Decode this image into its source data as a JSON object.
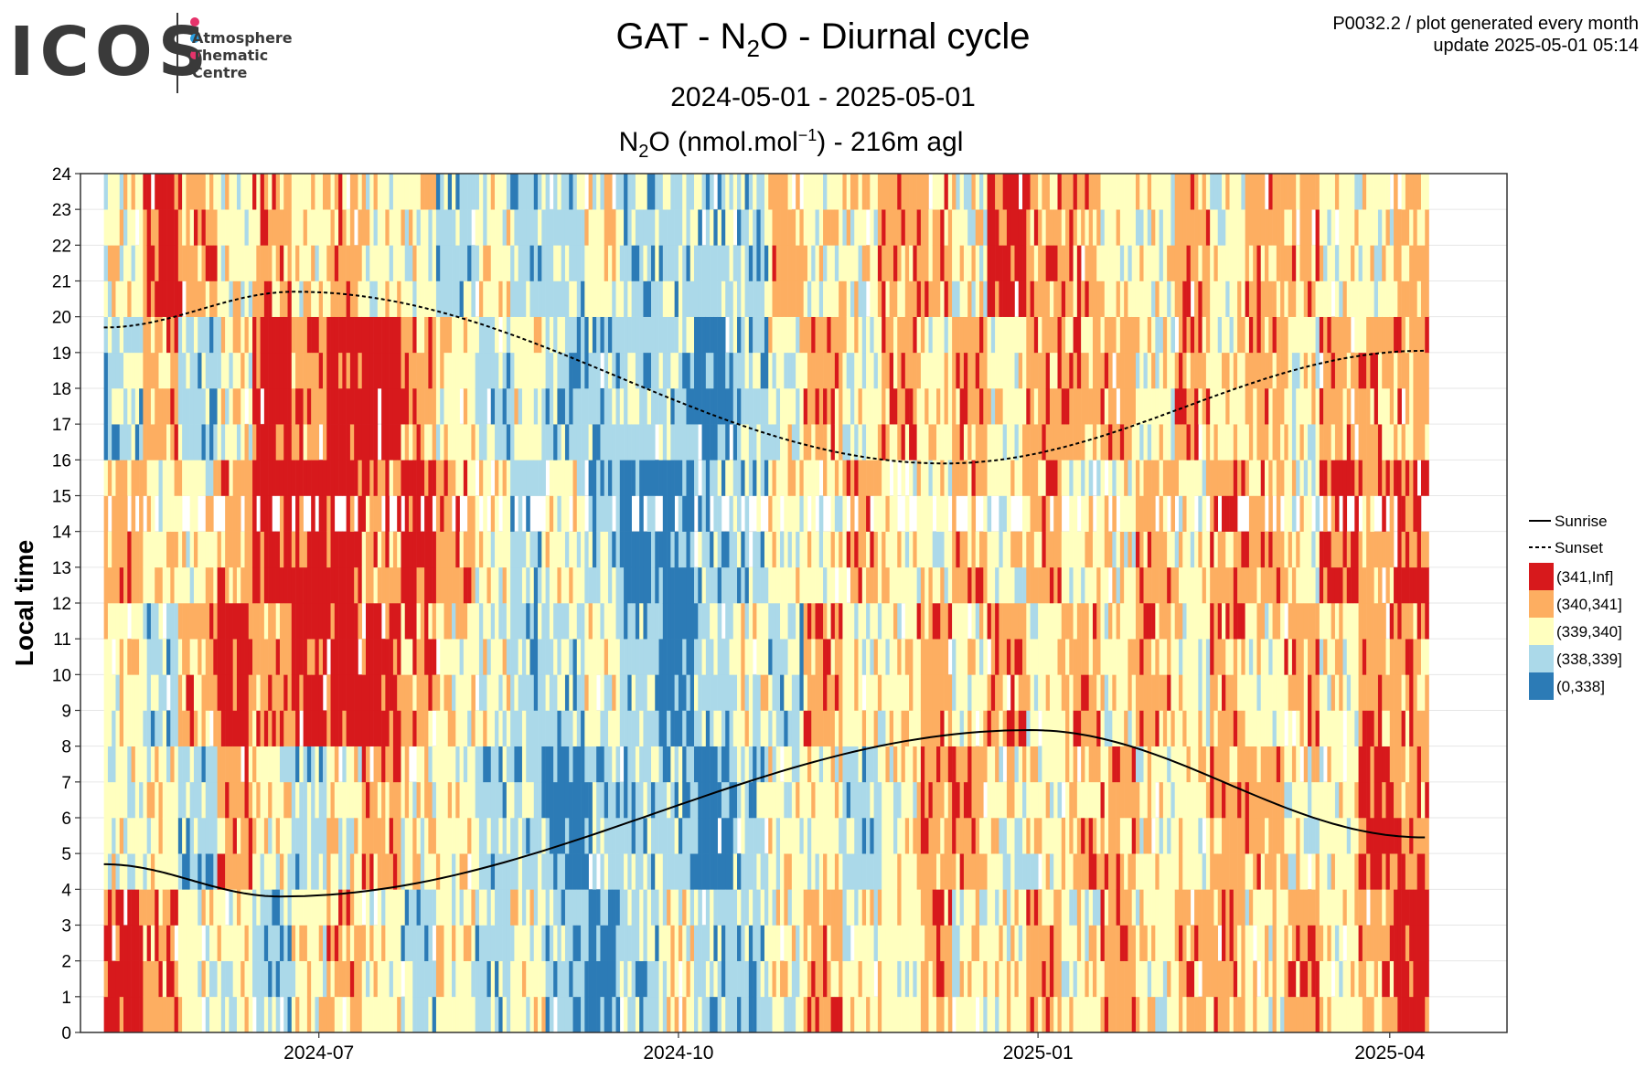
{
  "logo": {
    "word": "ICOS",
    "line1": "Atmosphere",
    "line2": "Thematic",
    "line3": "Centre",
    "dot_colors": [
      "#e6336b",
      "#2a9ee0",
      "#e6336b"
    ]
  },
  "header": {
    "title_pre": "GAT - N",
    "title_sub": "2",
    "title_post": "O - Diurnal cycle",
    "subtitle": "2024-05-01 - 2025-05-01",
    "unit_pre": "N",
    "unit_sub": "2",
    "unit_mid": "O (nmol.mol",
    "unit_sup": "−1",
    "unit_post": ") - 216m agl",
    "meta_line1": "P0032.2 / plot generated every month",
    "meta_line2": "update  2025-05-01 05:14"
  },
  "chart_data": {
    "type": "heatmap",
    "ylabel": "Local time",
    "ylim": [
      0,
      24
    ],
    "yticks": [
      "0",
      "1",
      "2",
      "3",
      "4",
      "5",
      "6",
      "7",
      "8",
      "9",
      "10",
      "11",
      "12",
      "13",
      "14",
      "15",
      "16",
      "17",
      "18",
      "19",
      "20",
      "21",
      "22",
      "23",
      "24"
    ],
    "xlim": [
      "2024-05-01",
      "2025-05-01"
    ],
    "xticks": [
      {
        "date": "2024-07-01",
        "label": "2024-07"
      },
      {
        "date": "2024-10-01",
        "label": "2024-10"
      },
      {
        "date": "2025-01-01",
        "label": "2025-01"
      },
      {
        "date": "2025-04-01",
        "label": "2025-04"
      }
    ],
    "grid": true,
    "legend": {
      "position": "right",
      "lines": [
        {
          "label": "Sunrise",
          "style": "solid"
        },
        {
          "label": "Sunset",
          "style": "dashed"
        }
      ],
      "bins": [
        {
          "label": "(341,Inf]",
          "color": "#d7191c"
        },
        {
          "label": "(340,341]",
          "color": "#fdae61"
        },
        {
          "label": "(339,340]",
          "color": "#ffffbf"
        },
        {
          "label": "(338,339]",
          "color": "#abd9e9"
        },
        {
          "label": "(0,338]",
          "color": "#2c7bb6"
        }
      ]
    },
    "sunrise": {
      "start_hour": 4.7,
      "min_hour": 3.8,
      "min_date": "2024-06-21",
      "max_hour": 8.45,
      "max_date": "2024-12-30",
      "end_hour": 5.45,
      "end_date": "2025-04-10"
    },
    "sunset": {
      "start_hour": 19.7,
      "max_hour": 20.7,
      "max_date": "2024-06-25",
      "min_hour": 15.9,
      "min_date": "2024-12-08",
      "end_hour": 19.05,
      "end_date": "2025-04-10"
    },
    "data_start": "2024-05-07",
    "data_end": "2025-04-10",
    "bin_sequence": [
      [
        0,
        2,
        2,
        1,
        3,
        2
      ],
      [
        1,
        2,
        3,
        2,
        1,
        0
      ],
      [
        2,
        3,
        1,
        2,
        3,
        1
      ],
      [
        2,
        1,
        0,
        1,
        2,
        2
      ],
      [
        3,
        2,
        1,
        0,
        0,
        1
      ],
      [
        2,
        3,
        0,
        0,
        1,
        2
      ],
      [
        1,
        2,
        0,
        0,
        0,
        1
      ],
      [
        2,
        1,
        0,
        1,
        0,
        2
      ],
      [
        3,
        2,
        1,
        0,
        1,
        2
      ],
      [
        2,
        2,
        2,
        1,
        2,
        3
      ],
      [
        3,
        3,
        2,
        2,
        3,
        2
      ],
      [
        2,
        3,
        3,
        3,
        2,
        3
      ],
      [
        3,
        4,
        3,
        2,
        3,
        3
      ],
      [
        4,
        3,
        2,
        3,
        3,
        2
      ],
      [
        3,
        3,
        3,
        4,
        3,
        3
      ],
      [
        2,
        3,
        4,
        4,
        3,
        3
      ],
      [
        3,
        4,
        3,
        3,
        4,
        3
      ],
      [
        3,
        3,
        2,
        3,
        3,
        3
      ],
      [
        2,
        2,
        3,
        2,
        2,
        1
      ],
      [
        1,
        2,
        1,
        2,
        1,
        2
      ],
      [
        2,
        3,
        2,
        1,
        2,
        2
      ],
      [
        2,
        2,
        2,
        2,
        1,
        1
      ],
      [
        1,
        1,
        1,
        2,
        2,
        1
      ],
      [
        2,
        1,
        2,
        1,
        1,
        2
      ],
      [
        2,
        2,
        1,
        2,
        2,
        0
      ],
      [
        1,
        2,
        2,
        1,
        1,
        1
      ],
      [
        2,
        1,
        1,
        2,
        1,
        1
      ],
      [
        1,
        1,
        2,
        2,
        1,
        2
      ],
      [
        2,
        2,
        1,
        1,
        2,
        2
      ],
      [
        1,
        2,
        2,
        2,
        1,
        1
      ],
      [
        1,
        1,
        1,
        1,
        2,
        2
      ],
      [
        2,
        1,
        2,
        1,
        1,
        1
      ],
      [
        1,
        2,
        1,
        2,
        2,
        1
      ],
      [
        2,
        2,
        2,
        0,
        1,
        2
      ],
      [
        1,
        0,
        1,
        1,
        1,
        2
      ],
      [
        0,
        1,
        1,
        0,
        1,
        1
      ]
    ]
  }
}
